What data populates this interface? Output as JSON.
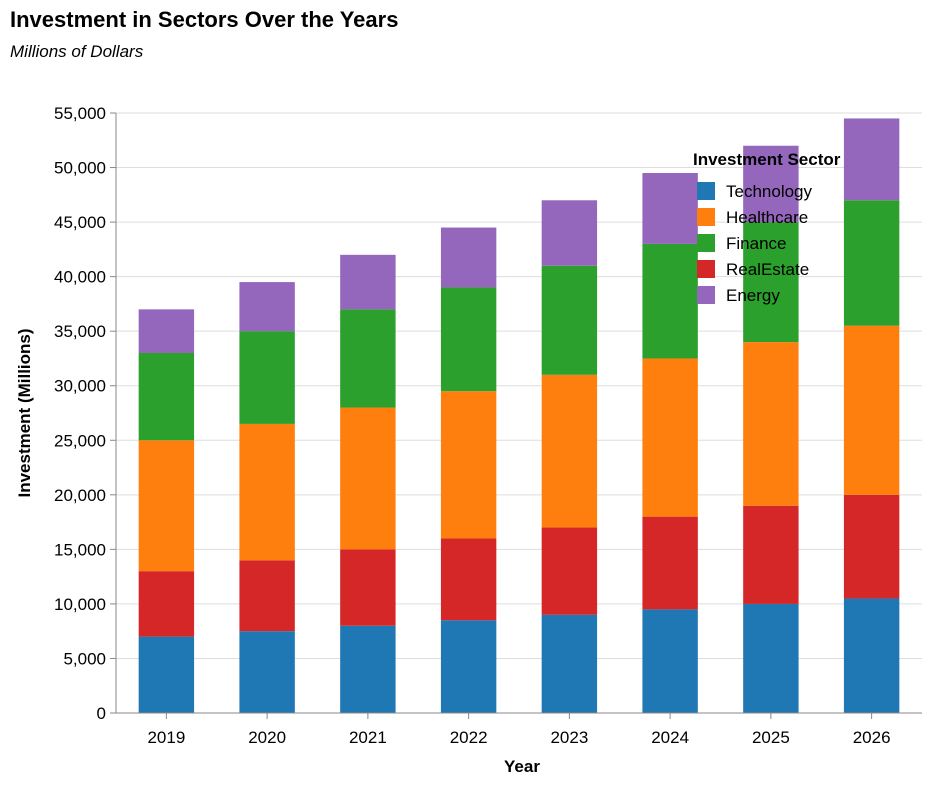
{
  "chart_data": {
    "type": "bar",
    "stacked": true,
    "title": "Investment in Sectors Over the Years",
    "subtitle": "Millions of Dollars",
    "xlabel": "Year",
    "ylabel": "Investment (Millions)",
    "ylim": [
      0,
      55000
    ],
    "yticks": [
      0,
      5000,
      10000,
      15000,
      20000,
      25000,
      30000,
      35000,
      40000,
      45000,
      50000,
      55000
    ],
    "grid": true,
    "categories": [
      "2019",
      "2020",
      "2021",
      "2022",
      "2023",
      "2024",
      "2025",
      "2026"
    ],
    "legend": {
      "title": "Investment Sector",
      "placement": "top-right"
    },
    "series": [
      {
        "name": "Technology",
        "color": "#1f77b4",
        "values": [
          7000,
          7500,
          8000,
          8500,
          9000,
          9500,
          10000,
          10500
        ]
      },
      {
        "name": "Healthcare",
        "color": "#ff7f0e",
        "values": [
          12000,
          12500,
          13000,
          13500,
          14000,
          14500,
          15000,
          15500
        ]
      },
      {
        "name": "Finance",
        "color": "#2ca02c",
        "values": [
          8000,
          8500,
          9000,
          9500,
          10000,
          10500,
          11000,
          11500
        ]
      },
      {
        "name": "RealEstate",
        "color": "#d62728",
        "values": [
          6000,
          6500,
          7000,
          7500,
          8000,
          8500,
          9000,
          9500
        ]
      },
      {
        "name": "Energy",
        "color": "#9467bd",
        "values": [
          4000,
          4500,
          5000,
          5500,
          6000,
          6500,
          7000,
          7500
        ]
      }
    ],
    "stack_order": [
      "Technology",
      "RealEstate",
      "Healthcare",
      "Finance",
      "Energy"
    ]
  }
}
